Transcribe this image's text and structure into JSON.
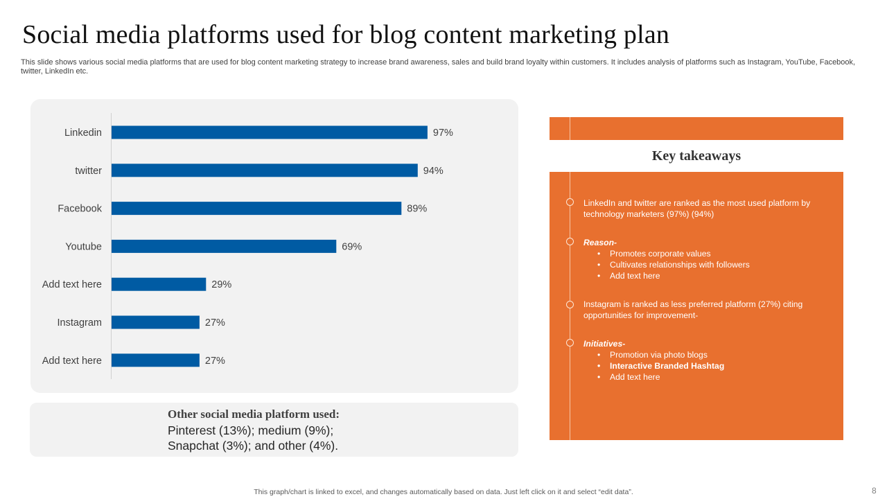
{
  "slide": {
    "title": "Social media platforms used for blog content marketing plan",
    "subtitle": "This slide shows various social media platforms that are used for blog content marketing strategy to increase brand awareness, sales and build brand loyalty within customers. It includes analysis of platforms such as Instagram, YouTube, Facebook, twitter, LinkedIn etc.",
    "footer": "This graph/chart is linked to excel, and changes automatically based on data. Just left click on it and select “edit data”.",
    "page_number": "8"
  },
  "colors": {
    "bar": "#005ba3",
    "accent": "#e8702f",
    "panel": "#f2f2f2"
  },
  "chart_data": {
    "type": "bar",
    "orientation": "horizontal",
    "categories": [
      "Linkedin",
      "twitter",
      "Facebook",
      "Youtube",
      "Add text here",
      "Instagram",
      "Add text here"
    ],
    "values": [
      97,
      94,
      89,
      69,
      29,
      27,
      27
    ],
    "value_labels": [
      "97%",
      "94%",
      "89%",
      "69%",
      "29%",
      "27%",
      "27%"
    ],
    "xlim": [
      0,
      100
    ],
    "grid": false,
    "legend": false
  },
  "other_platforms": {
    "heading": "Other social media platform used",
    "heading_colon": ":",
    "text": "Pinterest (13%); medium (9%); Snapchat (3%); and other (4%)."
  },
  "takeaways": {
    "title": "Key takeaways",
    "point1": "LinkedIn and twitter are ranked as the most used platform by technology marketers (97%) (94%)",
    "reason_heading": "Reason-",
    "reason_items": [
      "Promotes corporate values",
      "Cultivates relationships with followers",
      "Add text here"
    ],
    "point3": "Instagram is ranked as less preferred platform (27%) citing opportunities for improvement-",
    "initiatives_heading": "Initiatives-",
    "initiative_items": [
      "Promotion via photo blogs",
      "Interactive Branded Hashtag",
      "Add text here"
    ]
  }
}
